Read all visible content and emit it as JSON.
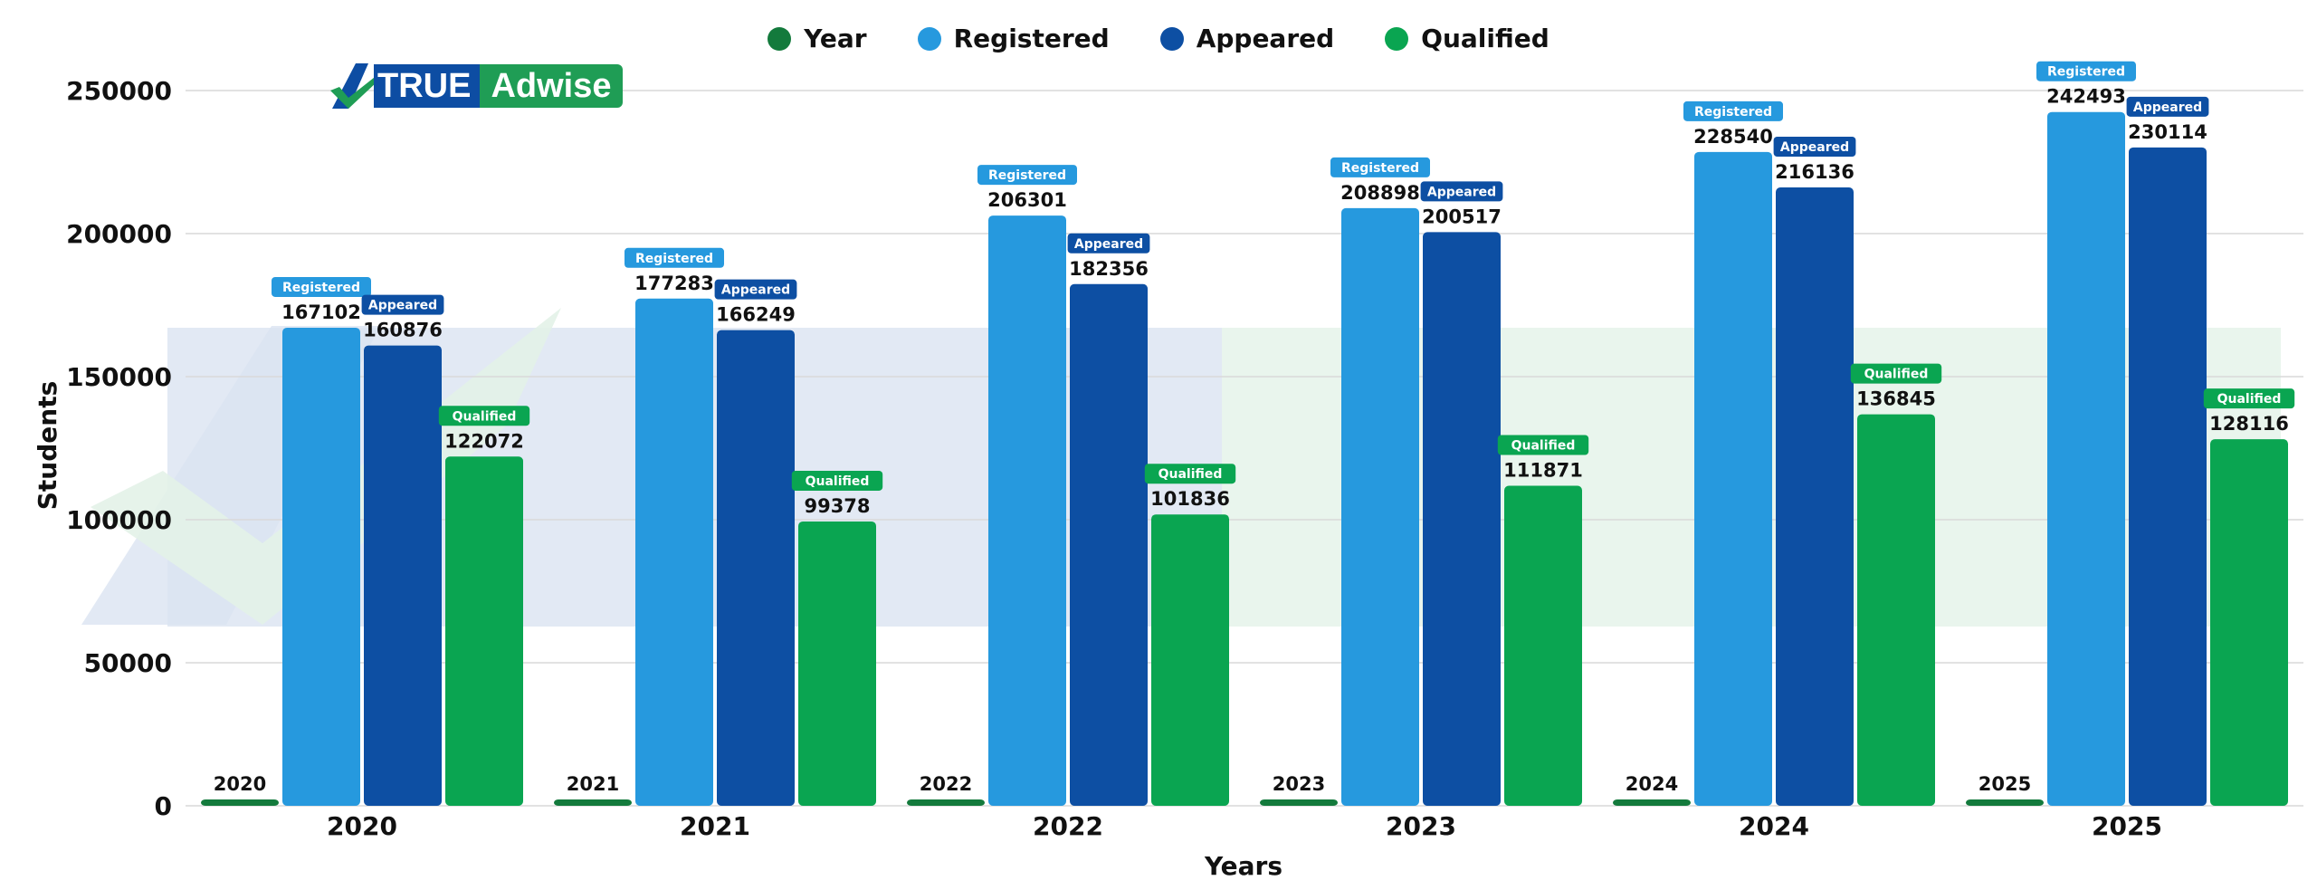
{
  "brand": {
    "logo_part1": "TRUE",
    "logo_part2": "Adwise"
  },
  "colors": {
    "year": "#137a3c",
    "registered": "#2699de",
    "appeared": "#0d4fa3",
    "qualified": "#0aa551",
    "grid": "#d9d9d9",
    "watermark_blue": "#dbe4f1",
    "watermark_green": "#e3f2e8"
  },
  "chart_data": {
    "type": "bar",
    "xlabel": "Years",
    "ylabel": "Students",
    "ylim": [
      0,
      250000
    ],
    "yticks": [
      "0",
      "50000",
      "100000",
      "150000",
      "200000",
      "250000"
    ],
    "categories": [
      "2020",
      "2021",
      "2022",
      "2023",
      "2024",
      "2025"
    ],
    "grid": true,
    "legend_position": "top-center",
    "series": [
      {
        "name": "Year",
        "values": [
          2020,
          2021,
          2022,
          2023,
          2024,
          2025
        ],
        "labels": [
          "2020",
          "2021",
          "2022",
          "2023",
          "2024",
          "2025"
        ],
        "badge": ""
      },
      {
        "name": "Registered",
        "values": [
          167102,
          177283,
          206301,
          208898,
          228540,
          242493
        ],
        "labels": [
          "167102",
          "177283",
          "206301",
          "208898",
          "228540",
          "242493"
        ],
        "badge": "Registered"
      },
      {
        "name": "Appeared",
        "values": [
          160876,
          166249,
          182356,
          200517,
          216136,
          230114
        ],
        "labels": [
          "160876",
          "166249",
          "182356",
          "200517",
          "216136",
          "230114"
        ],
        "badge": "Appeared"
      },
      {
        "name": "Qualified",
        "values": [
          122072,
          99378,
          101836,
          111871,
          136845,
          128116
        ],
        "labels": [
          "122072",
          "99378",
          "101836",
          "111871",
          "136845",
          "128116"
        ],
        "badge": "Qualified"
      }
    ]
  }
}
